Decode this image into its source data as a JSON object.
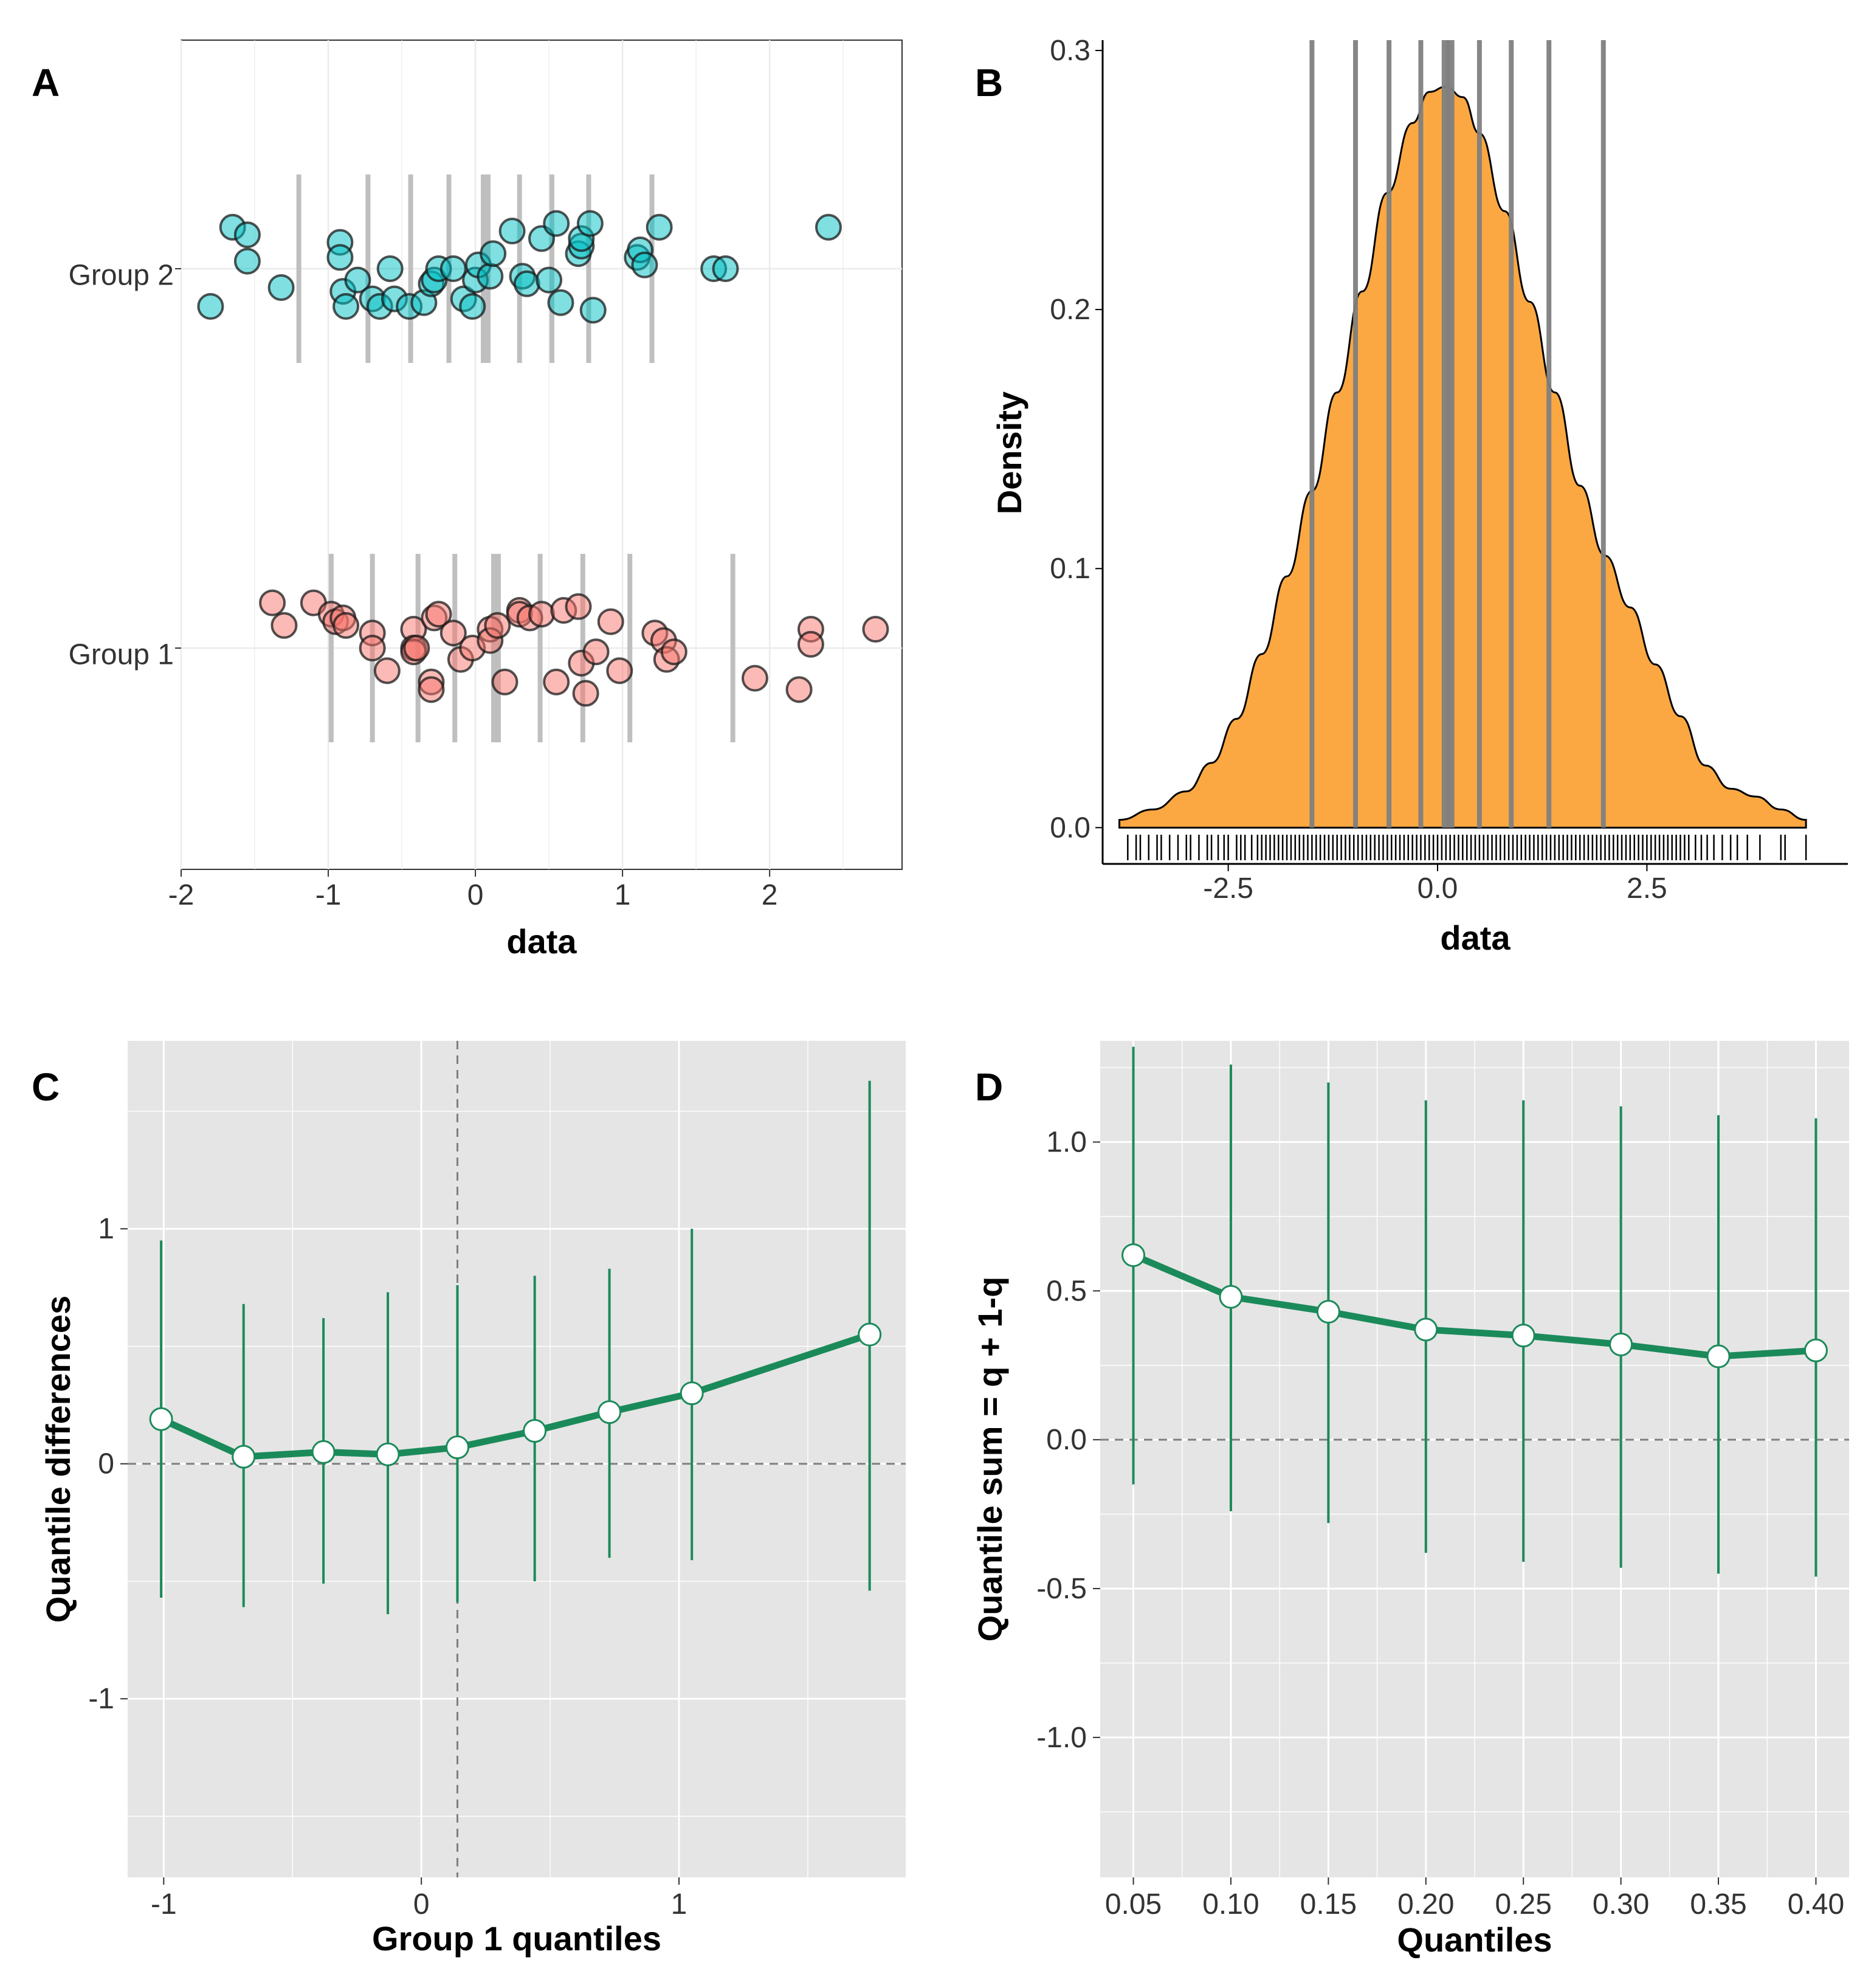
{
  "colors": {
    "group1_fill": "#F8766D",
    "group2_fill": "#00BFC4",
    "density_fill": "#FBA842",
    "decile_line": "#808080",
    "green": "#1B8A5A",
    "panel_bg": "#E5E5E5"
  },
  "chart_data": [
    {
      "panel": "A",
      "type": "scatter",
      "xlabel": "data",
      "xlim": [
        -2,
        2.9
      ],
      "x_ticks": [
        "-2",
        "-1",
        "0",
        "1",
        "2"
      ],
      "categories": [
        "Group 1",
        "Group 2"
      ],
      "series": [
        {
          "name": "Group 1",
          "category": "Group 1",
          "values": [
            -1.38,
            -1.3,
            -1.1,
            -0.98,
            -0.95,
            -0.9,
            -0.88,
            -0.7,
            -0.7,
            -0.6,
            -0.42,
            -0.42,
            -0.42,
            -0.4,
            -0.3,
            -0.3,
            -0.28,
            -0.25,
            -0.15,
            -0.1,
            -0.02,
            0.1,
            0.1,
            0.15,
            0.2,
            0.3,
            0.3,
            0.37,
            0.45,
            0.55,
            0.6,
            0.7,
            0.72,
            0.75,
            0.82,
            0.92,
            0.98,
            1.22,
            1.28,
            1.3,
            1.35,
            1.9,
            2.2,
            2.28,
            2.28,
            2.72
          ],
          "jitter": [
            0.12,
            0.06,
            0.12,
            0.09,
            0.07,
            0.08,
            0.06,
            0.04,
            0.0,
            -0.06,
            0.05,
            0.0,
            -0.01,
            0.0,
            -0.09,
            -0.11,
            0.08,
            0.09,
            0.04,
            -0.03,
            0.0,
            0.05,
            0.02,
            0.06,
            -0.09,
            0.1,
            0.09,
            0.08,
            0.09,
            -0.09,
            0.1,
            0.11,
            -0.04,
            -0.12,
            -0.01,
            0.07,
            -0.06,
            0.04,
            0.02,
            -0.03,
            -0.01,
            -0.08,
            -0.11,
            0.05,
            0.01,
            0.05
          ]
        },
        {
          "name": "Group 2",
          "category": "Group 2",
          "values": [
            -1.8,
            -1.65,
            -1.55,
            -1.55,
            -1.32,
            -0.92,
            -0.92,
            -0.9,
            -0.88,
            -0.8,
            -0.7,
            -0.65,
            -0.58,
            -0.55,
            -0.45,
            -0.35,
            -0.3,
            -0.28,
            -0.25,
            -0.15,
            -0.08,
            -0.02,
            0.0,
            0.02,
            0.1,
            0.12,
            0.25,
            0.32,
            0.35,
            0.45,
            0.5,
            0.55,
            0.58,
            0.7,
            0.72,
            0.72,
            0.78,
            0.8,
            1.1,
            1.12,
            1.15,
            1.25,
            1.62,
            1.7,
            2.4
          ],
          "jitter": [
            -0.1,
            0.11,
            0.09,
            0.02,
            -0.05,
            0.07,
            0.03,
            -0.06,
            -0.1,
            -0.03,
            -0.08,
            -0.1,
            0.0,
            -0.08,
            -0.1,
            -0.09,
            -0.04,
            -0.03,
            0.0,
            0.0,
            -0.08,
            -0.1,
            -0.03,
            0.01,
            -0.02,
            0.04,
            0.1,
            -0.02,
            -0.04,
            0.08,
            -0.03,
            0.12,
            -0.09,
            0.04,
            0.06,
            0.08,
            0.12,
            -0.11,
            0.03,
            0.05,
            0.01,
            0.11,
            0.0,
            0.0,
            0.11
          ]
        }
      ],
      "deciles": {
        "Group 1": [
          -0.98,
          -0.7,
          -0.39,
          -0.14,
          0.14,
          0.44,
          0.73,
          1.05,
          1.75
        ],
        "Group 2": [
          -1.2,
          -0.73,
          -0.44,
          -0.18,
          0.07,
          0.3,
          0.52,
          0.77,
          1.2
        ]
      },
      "medians": {
        "Group 1": 0.14,
        "Group 2": 0.07
      }
    },
    {
      "panel": "B",
      "type": "area",
      "xlabel": "data",
      "ylabel": "Density",
      "xlim": [
        -4.0,
        4.9
      ],
      "ylim": [
        -0.014,
        0.304
      ],
      "x_ticks": [
        "-2.5",
        "0.0",
        "2.5"
      ],
      "y_ticks": [
        "0.0",
        "0.1",
        "0.2",
        "0.3"
      ],
      "x": [
        -3.8,
        -3.4,
        -3.0,
        -2.7,
        -2.4,
        -2.1,
        -1.8,
        -1.5,
        -1.2,
        -0.9,
        -0.6,
        -0.3,
        -0.1,
        0.1,
        0.3,
        0.5,
        0.8,
        1.1,
        1.4,
        1.7,
        2.0,
        2.3,
        2.6,
        2.9,
        3.2,
        3.5,
        3.8,
        4.1,
        4.4
      ],
      "y": [
        0.003,
        0.007,
        0.014,
        0.025,
        0.042,
        0.067,
        0.097,
        0.13,
        0.168,
        0.207,
        0.245,
        0.272,
        0.284,
        0.286,
        0.282,
        0.268,
        0.238,
        0.203,
        0.168,
        0.132,
        0.105,
        0.085,
        0.063,
        0.043,
        0.024,
        0.015,
        0.012,
        0.007,
        0.003
      ],
      "deciles": [
        -1.5,
        -0.98,
        -0.58,
        -0.2,
        0.1,
        0.15,
        0.5,
        0.88,
        1.33,
        1.98
      ],
      "median": 0.12,
      "rug": [
        -3.7,
        -3.6,
        -3.55,
        -3.45,
        -3.35,
        -3.3,
        -3.2,
        -3.1,
        -3.0,
        -2.95,
        -2.85,
        -2.75,
        -2.7,
        -2.62,
        -2.55,
        -2.5,
        -2.4,
        -2.35,
        -2.3,
        -2.22,
        -2.15,
        -2.1,
        -2.05,
        -2.0,
        -1.95,
        -1.9,
        -1.85,
        -1.8,
        -1.75,
        -1.7,
        -1.65,
        -1.6,
        -1.55,
        -1.5,
        -1.45,
        -1.4,
        -1.35,
        -1.3,
        -1.25,
        -1.2,
        -1.15,
        -1.1,
        -1.05,
        -1.0,
        -0.95,
        -0.9,
        -0.85,
        -0.8,
        -0.75,
        -0.7,
        -0.65,
        -0.6,
        -0.55,
        -0.5,
        -0.45,
        -0.4,
        -0.35,
        -0.3,
        -0.25,
        -0.2,
        -0.15,
        -0.1,
        -0.05,
        0.0,
        0.05,
        0.1,
        0.15,
        0.2,
        0.25,
        0.3,
        0.35,
        0.4,
        0.45,
        0.5,
        0.55,
        0.6,
        0.65,
        0.7,
        0.75,
        0.8,
        0.85,
        0.9,
        0.95,
        1.0,
        1.05,
        1.1,
        1.15,
        1.2,
        1.25,
        1.3,
        1.35,
        1.4,
        1.45,
        1.5,
        1.55,
        1.6,
        1.65,
        1.7,
        1.75,
        1.8,
        1.85,
        1.9,
        1.95,
        2.0,
        2.05,
        2.1,
        2.15,
        2.2,
        2.25,
        2.3,
        2.35,
        2.4,
        2.45,
        2.5,
        2.55,
        2.6,
        2.65,
        2.7,
        2.75,
        2.8,
        2.85,
        2.9,
        2.95,
        3.0,
        3.08,
        3.15,
        3.22,
        3.3,
        3.4,
        3.5,
        3.58,
        3.7,
        3.85,
        4.1,
        4.15,
        4.4
      ]
    },
    {
      "panel": "C",
      "type": "line",
      "xlabel": "Group 1 quantiles",
      "ylabel": "Quantile differences",
      "xlim": [
        -1.14,
        1.88
      ],
      "ylim": [
        -1.76,
        1.8
      ],
      "x_ticks": [
        "-1",
        "0",
        "1"
      ],
      "y_ticks": [
        "-1",
        "0",
        "1"
      ],
      "x": [
        -1.01,
        -0.69,
        -0.38,
        -0.13,
        0.14,
        0.44,
        0.73,
        1.05,
        1.74
      ],
      "y": [
        0.19,
        0.03,
        0.05,
        0.04,
        0.07,
        0.14,
        0.22,
        0.3,
        0.55
      ],
      "ci_low": [
        -0.57,
        -0.61,
        -0.51,
        -0.64,
        -0.59,
        -0.5,
        -0.4,
        -0.41,
        -0.54
      ],
      "ci_high": [
        0.95,
        0.68,
        0.62,
        0.73,
        0.76,
        0.8,
        0.83,
        1.0,
        1.63
      ],
      "vline": 0.14,
      "hline": 0
    },
    {
      "panel": "D",
      "type": "line",
      "xlabel": "Quantiles",
      "ylabel": "Quantile sum = q + 1-q",
      "xlim": [
        0.033,
        0.417
      ],
      "ylim": [
        -1.47,
        1.34
      ],
      "x_ticks": [
        "0.05",
        "0.10",
        "0.15",
        "0.20",
        "0.25",
        "0.30",
        "0.35",
        "0.40"
      ],
      "y_ticks": [
        "-1.0",
        "-0.5",
        "0.0",
        "0.5",
        "1.0"
      ],
      "x": [
        0.05,
        0.1,
        0.15,
        0.2,
        0.25,
        0.3,
        0.35,
        0.4
      ],
      "y": [
        0.62,
        0.48,
        0.43,
        0.37,
        0.35,
        0.32,
        0.28,
        0.3
      ],
      "ci_low": [
        -0.15,
        -0.24,
        -0.28,
        -0.38,
        -0.41,
        -0.43,
        -0.45,
        -0.46
      ],
      "ci_high": [
        1.32,
        1.26,
        1.2,
        1.14,
        1.14,
        1.12,
        1.09,
        1.08
      ],
      "hline": 0
    }
  ],
  "labels": {
    "a": {
      "panel": "A",
      "xlabel": "data",
      "groups": [
        "Group 1",
        "Group 2"
      ]
    },
    "b": {
      "panel": "B",
      "xlabel": "data",
      "ylabel": "Density"
    },
    "c": {
      "panel": "C",
      "xlabel": "Group 1 quantiles",
      "ylabel": "Quantile differences"
    },
    "d": {
      "panel": "D",
      "xlabel": "Quantiles",
      "ylabel": "Quantile sum = q + 1-q"
    }
  }
}
